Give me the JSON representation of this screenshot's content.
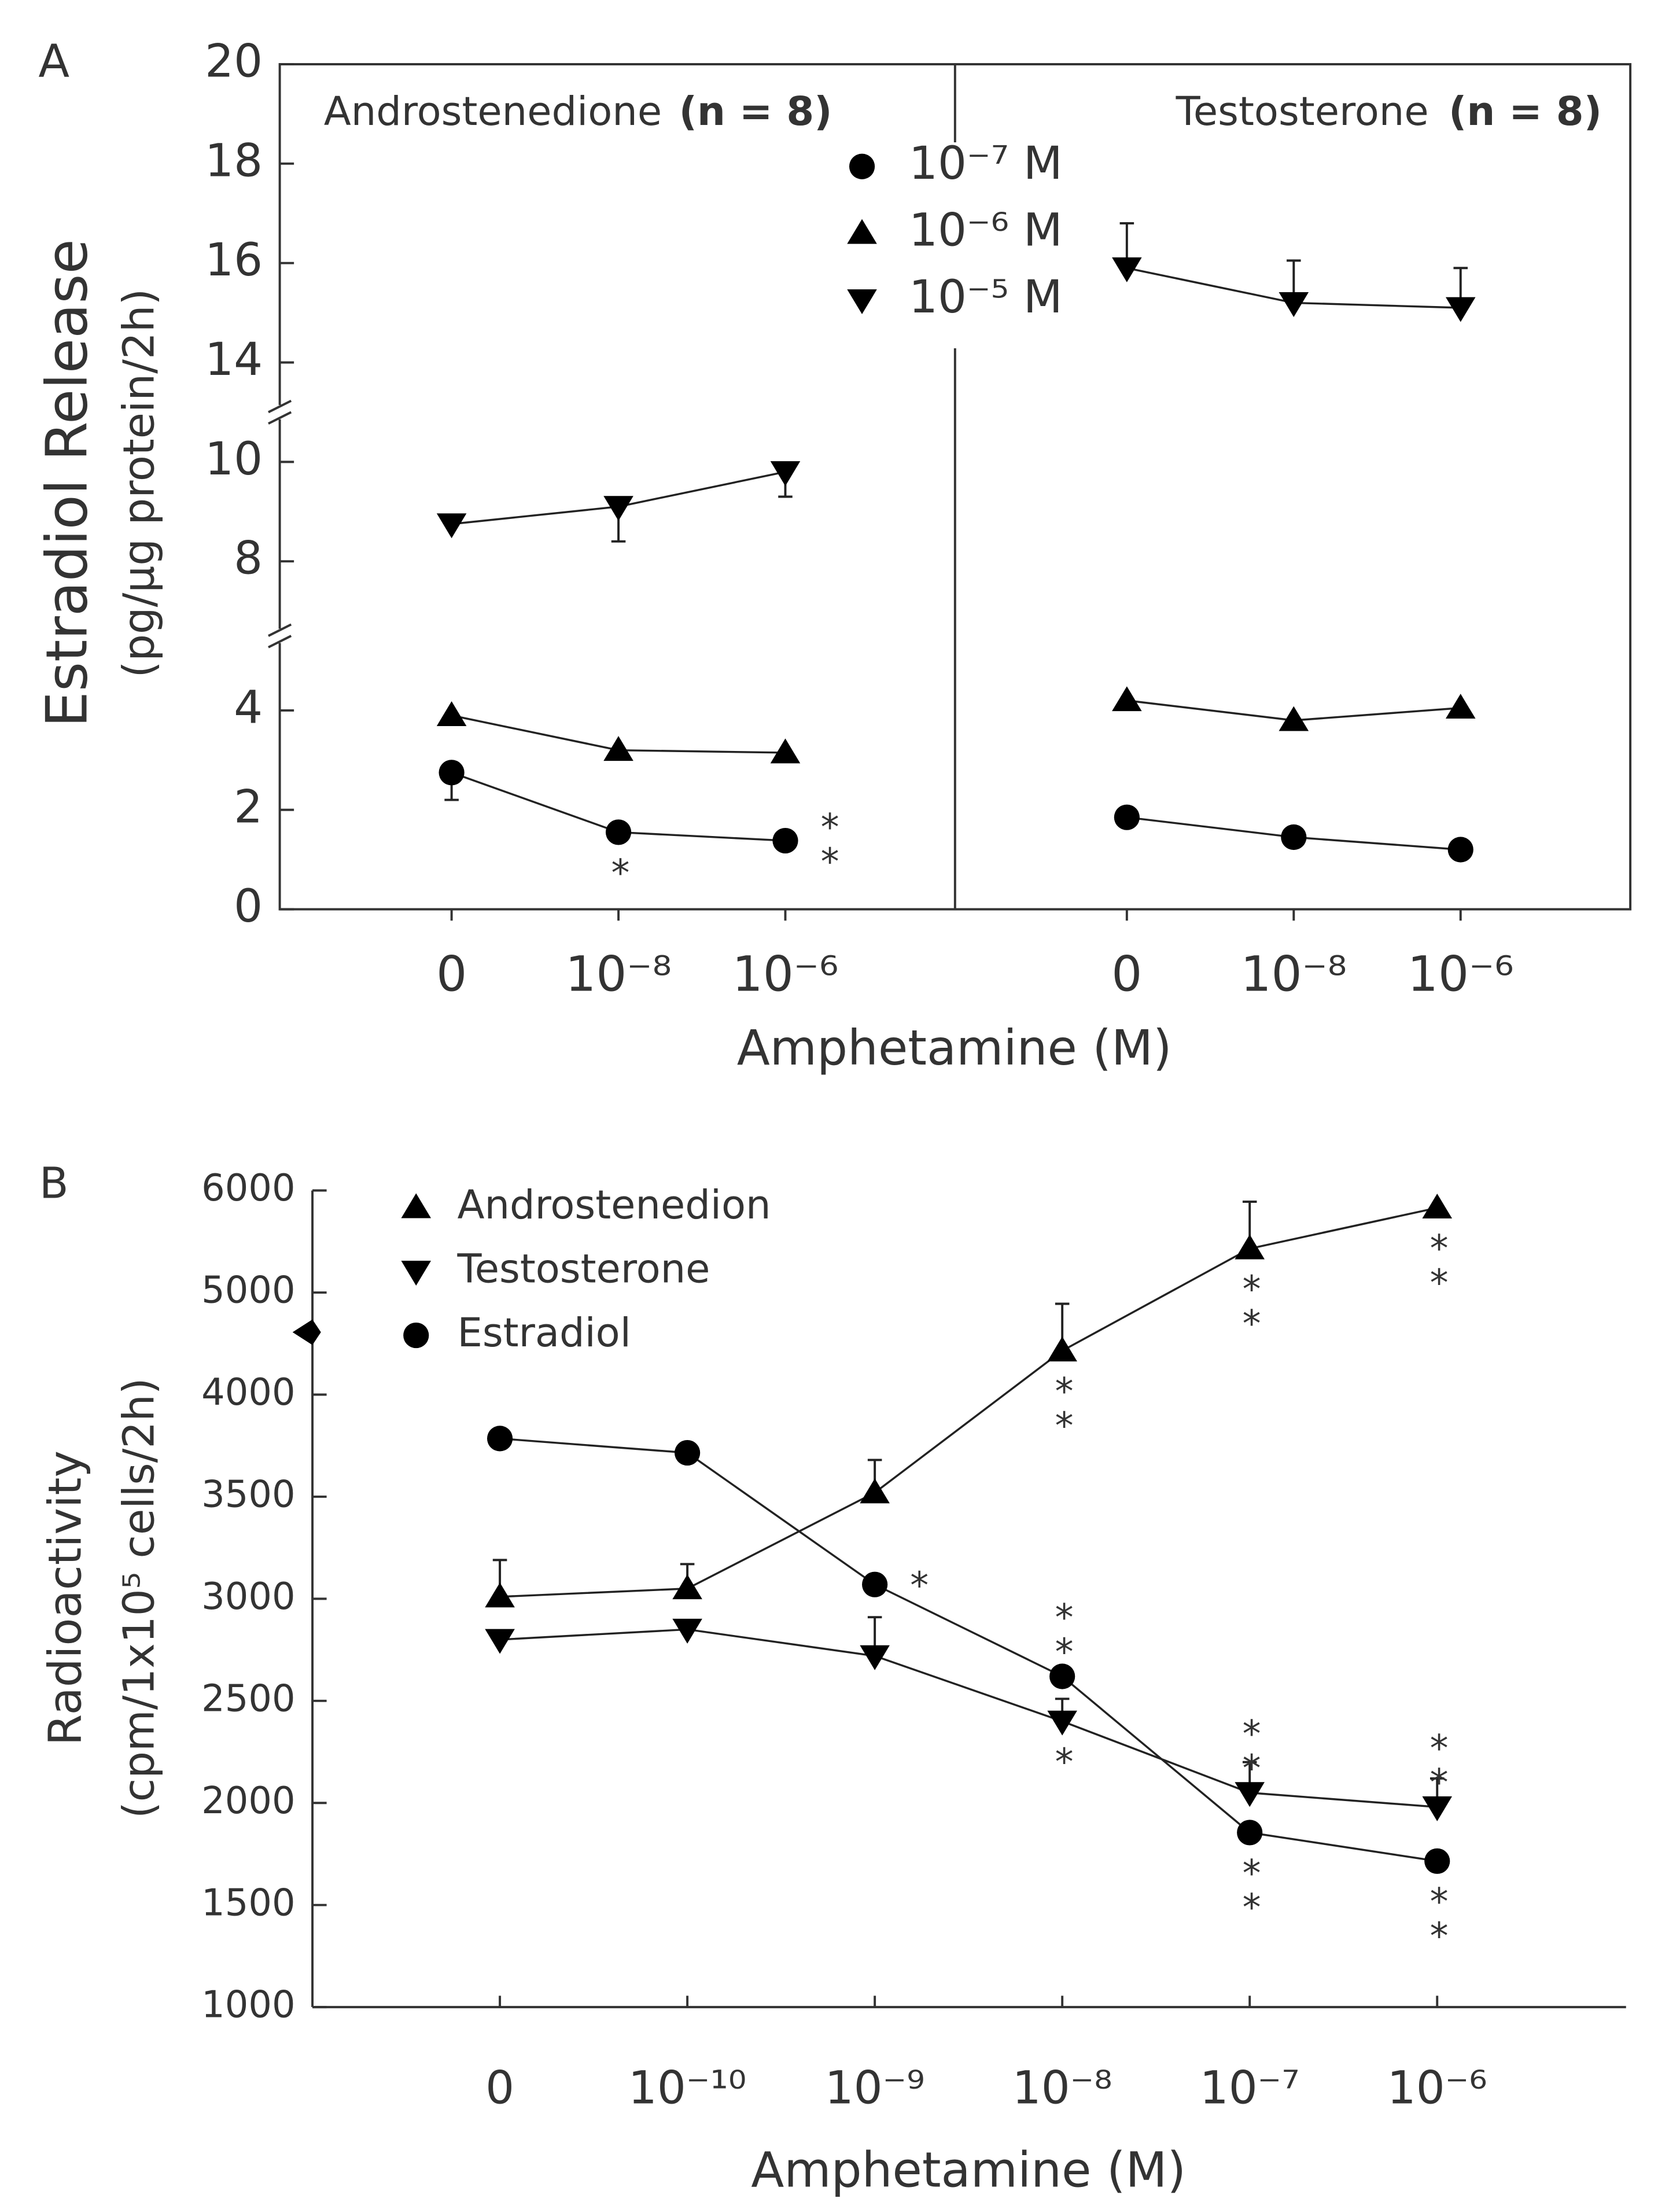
{
  "chart_data": [
    {
      "type": "line",
      "label": "A",
      "panels": [
        {
          "title": "Androstenedione",
          "n_label": "(n = 8)"
        },
        {
          "title": "Testosterone",
          "n_label": "(n = 8)"
        }
      ],
      "categories": [
        "0",
        "10⁻⁸",
        "10⁻⁶"
      ],
      "xlabel": "Amphetamine (M)",
      "ylabel": [
        "Estradiol Release",
        "(pg/µg protein/2h)"
      ],
      "ylim": [
        0,
        20
      ],
      "yticks": [
        0,
        2,
        4,
        8,
        10,
        14,
        16,
        18,
        20
      ],
      "y_breaks": [
        [
          5.5,
          6.5
        ],
        [
          11,
          13
        ]
      ],
      "series": [
        {
          "name": "10⁻⁷ M",
          "marker": "circle",
          "color": "#000000",
          "values": [
            [
              2.75,
              1.55,
              1.38
            ],
            [
              1.85,
              1.45,
              1.2
            ]
          ],
          "errors": [
            [
              0.55,
              null,
              null
            ],
            [
              null,
              null,
              null
            ]
          ],
          "error_side": [
            "below",
            "above"
          ],
          "significance": [
            [
              null,
              "*",
              "**"
            ],
            [
              null,
              null,
              null
            ]
          ]
        },
        {
          "name": "10⁻⁶ M",
          "marker": "triangle-up",
          "color": "#000000",
          "values": [
            [
              3.9,
              3.2,
              3.15
            ],
            [
              4.2,
              3.8,
              4.05
            ]
          ]
        },
        {
          "name": "10⁻⁵ M",
          "marker": "triangle-down",
          "color": "#000000",
          "values": [
            [
              8.75,
              9.1,
              9.8
            ],
            [
              15.9,
              15.2,
              15.1
            ]
          ],
          "errors": [
            [
              null,
              0.7,
              0.5
            ],
            [
              0.9,
              0.85,
              0.8
            ]
          ],
          "error_side": [
            "below",
            "above"
          ]
        }
      ]
    },
    {
      "type": "line",
      "label": "B",
      "categories": [
        "0",
        "10⁻¹⁰",
        "10⁻⁹",
        "10⁻⁸",
        "10⁻⁷",
        "10⁻⁶"
      ],
      "xlabel": "Amphetamine (M)",
      "ylabel": [
        "Radioactivity",
        "(cpm/1x10⁵  cells/2h)"
      ],
      "ylim": [
        1000,
        6000
      ],
      "yticks": [
        1000,
        1500,
        2000,
        2500,
        3000,
        3500,
        4000,
        5000,
        6000
      ],
      "tick_spacing": "even",
      "series": [
        {
          "name": "Androstenedion",
          "marker": "triangle-up",
          "color": "#000000",
          "values": [
            3010,
            3050,
            3520,
            4430,
            5430,
            5830
          ],
          "errors": [
            180,
            120,
            160,
            460,
            460,
            null
          ],
          "error_side": "above",
          "significance": [
            null,
            null,
            null,
            "**",
            "**",
            "**"
          ]
        },
        {
          "name": "Testosterone",
          "marker": "triangle-down",
          "color": "#000000",
          "values": [
            2800,
            2850,
            2720,
            2400,
            2050,
            1980
          ],
          "errors": [
            null,
            null,
            190,
            110,
            150,
            140
          ],
          "error_side": "above",
          "significance": [
            null,
            null,
            null,
            "*",
            "**",
            "**"
          ]
        },
        {
          "name": "Estradiol",
          "marker": "circle",
          "color": "#000000",
          "values": [
            3785,
            3715,
            3070,
            2620,
            1855,
            1715
          ],
          "significance": [
            null,
            null,
            "*",
            "**",
            "**",
            "**"
          ]
        }
      ]
    }
  ]
}
